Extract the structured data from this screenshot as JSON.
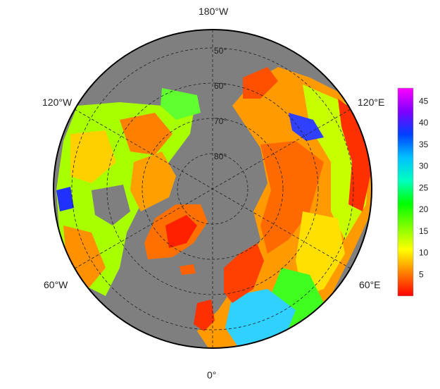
{
  "labels": {
    "top": "180°W",
    "bottom": "0°",
    "upper_left": "120°W",
    "upper_right": "120°E",
    "lower_left": "60°W",
    "lower_right": "60°E",
    "lat_50": "50°",
    "lat_60": "60°",
    "lat_70": "70°",
    "lat_80": "80°"
  },
  "colorbar": {
    "ticks": [
      "45",
      "40",
      "35",
      "30",
      "25",
      "20",
      "15",
      "10",
      "5"
    ],
    "min": 0,
    "max": 48,
    "colors": [
      "#ff0000",
      "#ff8000",
      "#ffff00",
      "#80ff00",
      "#00ff00",
      "#00ffc0",
      "#00c0ff",
      "#0040ff",
      "#8000ff",
      "#ff00ff"
    ]
  },
  "colors": {
    "ocean": "#7f7f7f",
    "background": "#ffffff"
  }
}
